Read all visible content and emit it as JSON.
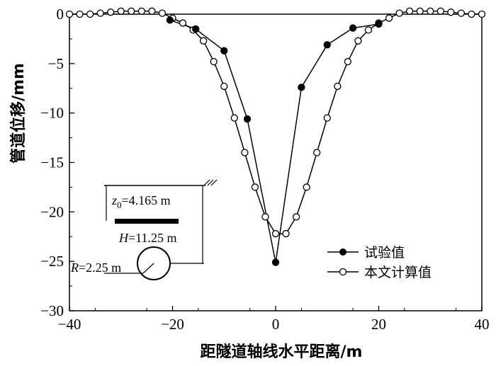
{
  "chart_data": {
    "type": "line",
    "xlabel": "距隧道轴线水平距离/m",
    "ylabel": "管道位移/mm",
    "xlim": [
      -40,
      40
    ],
    "ylim": [
      -30,
      0
    ],
    "xticks": [
      "−40",
      "−20",
      "0",
      "20",
      "40"
    ],
    "yticks": [
      "0",
      "−5",
      "−10",
      "−15",
      "−20",
      "−25",
      "−30"
    ],
    "legend_position": "lower-right",
    "series": [
      {
        "name": "试验值",
        "marker": "filled-circle",
        "color": "#000000",
        "x": [
          -20.5,
          -15.5,
          -10,
          -5.5,
          0,
          5,
          10,
          15,
          20
        ],
        "y": [
          -0.6,
          -1.5,
          -3.7,
          -10.6,
          -25.1,
          -7.4,
          -3.1,
          -1.4,
          -1.0
        ]
      },
      {
        "name": "本文计算值",
        "marker": "open-circle",
        "color": "#000000",
        "x": [
          -40,
          -38,
          -36,
          -34,
          -32,
          -30,
          -28,
          -26,
          -24,
          -22,
          -20,
          -18,
          -16,
          -14,
          -12,
          -10,
          -8,
          -6,
          -4,
          -2,
          0,
          2,
          4,
          6,
          8,
          10,
          12,
          14,
          16,
          18,
          20,
          22,
          24,
          26,
          28,
          30,
          32,
          34,
          36,
          38,
          40
        ],
        "y": [
          0,
          0,
          0,
          0.1,
          0.2,
          0.3,
          0.3,
          0.3,
          0.3,
          0.1,
          -0.4,
          -0.9,
          -1.6,
          -2.7,
          -4.8,
          -7.3,
          -10.5,
          -14,
          -17.5,
          -20.5,
          -22.2,
          -22.2,
          -20.5,
          -17.5,
          -14,
          -10.5,
          -7.3,
          -4.8,
          -2.7,
          -1.6,
          -0.9,
          -0.4,
          0.1,
          0.3,
          0.3,
          0.3,
          0.3,
          0.2,
          0.1,
          0,
          0
        ]
      }
    ],
    "inset": {
      "z0_label": "z",
      "z0_sub": "0",
      "z0_value": "=4.165 m",
      "H_symbol": "H",
      "H_value": "=11.25 m",
      "R_symbol": "R",
      "R_value": "=2.25 m"
    }
  }
}
